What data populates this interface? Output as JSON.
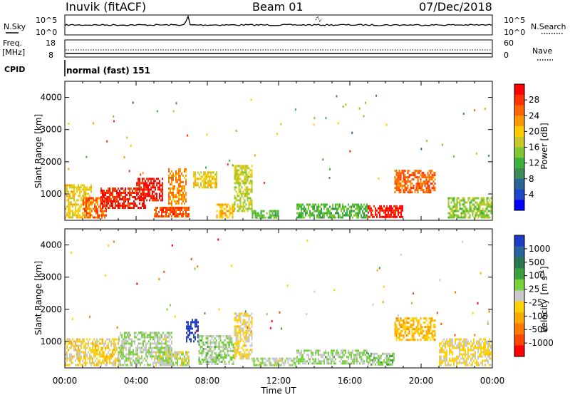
{
  "header": {
    "station": "Inuvik (fitACF)",
    "beam": "Beam 01",
    "date": "07/Dec/2018"
  },
  "nsky_panel": {
    "left_label": "N.Sky",
    "left_ticks": [
      "10^5",
      "10^0"
    ],
    "right_ticks": [
      "10^5",
      "10^0"
    ],
    "right_label": "N.Search"
  },
  "freq_panel": {
    "left_label_1": "Freq.",
    "left_label_2": "[MHz]",
    "left_ticks": [
      "18",
      "8"
    ],
    "right_ticks": [
      "60",
      "0"
    ],
    "right_label": "Nave"
  },
  "cpid": {
    "label": "CPID",
    "value": "normal (fast) 151"
  },
  "power_colorbar": {
    "label": "Power [dB]",
    "ticks": [
      "28",
      "24",
      "20",
      "16",
      "12",
      "8",
      "4"
    ],
    "colors": [
      "#ff0000",
      "#ff3300",
      "#ff6600",
      "#ff9900",
      "#ffcc00",
      "#c8c828",
      "#7fc832",
      "#3cb43c",
      "#3c8c5a",
      "#286496",
      "#1e46c8",
      "#0000ff"
    ]
  },
  "velocity_colorbar": {
    "label_main": "Velocity",
    "label_unit": "[m s",
    "label_exp": "-1",
    "label_close": "]",
    "ticks": [
      "1000",
      "500",
      "100",
      "25",
      "-25",
      "-100",
      "-500",
      "-1000"
    ],
    "colors": [
      "#1e3cc8",
      "#2864a0",
      "#287850",
      "#3ca03c",
      "#78d23c",
      "#c8c8c8",
      "#ffd200",
      "#ffaa00",
      "#ff7800",
      "#ff4600",
      "#ff0000"
    ]
  },
  "x_axis": {
    "ticks": [
      "00:00",
      "04:00",
      "08:00",
      "12:00",
      "16:00",
      "20:00",
      "00:00"
    ],
    "label": "Time UT"
  },
  "chart_data": {
    "type": "heatmap",
    "panels": [
      {
        "name": "Power",
        "ylabel": "Slant Range [km]",
        "ylim": [
          180,
          4500
        ],
        "yticks": [
          1000,
          2000,
          3000,
          4000
        ],
        "xlim_hours": [
          0,
          24
        ],
        "colorbar_range": [
          0,
          30
        ],
        "regions": [
          {
            "t0": 0.0,
            "t1": 1.5,
            "r0": 280,
            "r1": 1300,
            "level": 18
          },
          {
            "t0": 1.0,
            "t1": 2.3,
            "r0": 300,
            "r1": 900,
            "level": 24
          },
          {
            "t0": 2.0,
            "t1": 4.5,
            "r0": 600,
            "r1": 1200,
            "level": 27
          },
          {
            "t0": 4.0,
            "t1": 5.5,
            "r0": 800,
            "r1": 1500,
            "level": 28
          },
          {
            "t0": 5.8,
            "t1": 6.8,
            "r0": 500,
            "r1": 1800,
            "level": 22
          },
          {
            "t0": 5.0,
            "t1": 7.0,
            "r0": 280,
            "r1": 600,
            "level": 25
          },
          {
            "t0": 7.2,
            "t1": 8.5,
            "r0": 1200,
            "r1": 1700,
            "level": 18
          },
          {
            "t0": 8.5,
            "t1": 9.5,
            "r0": 300,
            "r1": 700,
            "level": 20
          },
          {
            "t0": 9.5,
            "t1": 10.5,
            "r0": 500,
            "r1": 1900,
            "level": 16
          },
          {
            "t0": 10.5,
            "t1": 12.0,
            "r0": 280,
            "r1": 500,
            "level": 12
          },
          {
            "t0": 13.0,
            "t1": 17.0,
            "r0": 300,
            "r1": 700,
            "level": 12
          },
          {
            "t0": 17.0,
            "t1": 19.0,
            "r0": 300,
            "r1": 650,
            "level": 28
          },
          {
            "t0": 18.5,
            "t1": 20.8,
            "r0": 1050,
            "r1": 1750,
            "level": 24
          },
          {
            "t0": 21.5,
            "t1": 24.0,
            "r0": 300,
            "r1": 900,
            "level": 14
          }
        ]
      },
      {
        "name": "Velocity",
        "ylabel": "Slant Range [km]",
        "ylim": [
          180,
          4500
        ],
        "yticks": [
          1000,
          2000,
          3000,
          4000
        ],
        "xlim_hours": [
          0,
          24
        ],
        "colorbar_range": [
          -1000,
          1000
        ],
        "regions": [
          {
            "t0": 0.0,
            "t1": 3.0,
            "r0": 280,
            "r1": 1100,
            "level": -150
          },
          {
            "t0": 3.0,
            "t1": 6.0,
            "r0": 300,
            "r1": 1300,
            "level": 80
          },
          {
            "t0": 5.0,
            "t1": 7.0,
            "r0": 300,
            "r1": 700,
            "level": 0
          },
          {
            "t0": 6.8,
            "t1": 7.5,
            "r0": 1000,
            "r1": 1700,
            "level": 1000
          },
          {
            "t0": 7.5,
            "t1": 9.5,
            "r0": 300,
            "r1": 1200,
            "level": 120
          },
          {
            "t0": 9.5,
            "t1": 10.5,
            "r0": 500,
            "r1": 1900,
            "level": -120
          },
          {
            "t0": 10.5,
            "t1": 13.0,
            "r0": 280,
            "r1": 500,
            "level": 60
          },
          {
            "t0": 13.0,
            "t1": 17.0,
            "r0": 300,
            "r1": 750,
            "level": 100
          },
          {
            "t0": 17.0,
            "t1": 18.5,
            "r0": 300,
            "r1": 650,
            "level": 150
          },
          {
            "t0": 18.5,
            "t1": 20.8,
            "r0": 1050,
            "r1": 1750,
            "level": -300
          },
          {
            "t0": 21.0,
            "t1": 24.0,
            "r0": 300,
            "r1": 1100,
            "level": -100
          }
        ]
      }
    ]
  }
}
